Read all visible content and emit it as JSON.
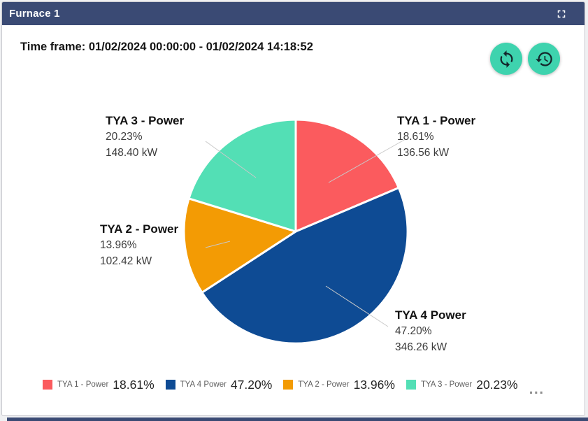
{
  "window": {
    "title": "Furnace 1"
  },
  "toolbar": {
    "time_frame": "Time frame: 01/02/2024 00:00:00 - 01/02/2024 14:18:52"
  },
  "icons": {
    "expand": "expand-icon",
    "refresh": "refresh-icon",
    "history": "history-icon",
    "legend_overflow": "ellipsis-dots"
  },
  "colors": {
    "header_bg": "#3a4a74",
    "button_bg": "#3ed3ae",
    "card_bg": "#ffffff",
    "leader_line": "#c9c9c9"
  },
  "legend": {
    "more_label": "...",
    "position": "bottom"
  },
  "chart_data": {
    "type": "pie",
    "title": "",
    "start_angle_deg": 0,
    "direction": "clockwise",
    "unit": "kW",
    "slices": [
      {
        "label": "TYA 1 - Power",
        "percent": 18.61,
        "percent_text": "18.61%",
        "value_kw": 136.56,
        "kw_text": "136.56 kW",
        "color": "#fb5b5e"
      },
      {
        "label": "TYA 4 Power",
        "percent": 47.2,
        "percent_text": "47.20%",
        "value_kw": 346.26,
        "kw_text": "346.26 kW",
        "color": "#0e4b94"
      },
      {
        "label": "TYA 2 - Power",
        "percent": 13.96,
        "percent_text": "13.96%",
        "value_kw": 102.42,
        "kw_text": "102.42 kW",
        "color": "#f39b04"
      },
      {
        "label": "TYA 3 - Power",
        "percent": 20.23,
        "percent_text": "20.23%",
        "value_kw": 148.4,
        "kw_text": "148.40 kW",
        "color": "#53dfb5"
      }
    ]
  }
}
